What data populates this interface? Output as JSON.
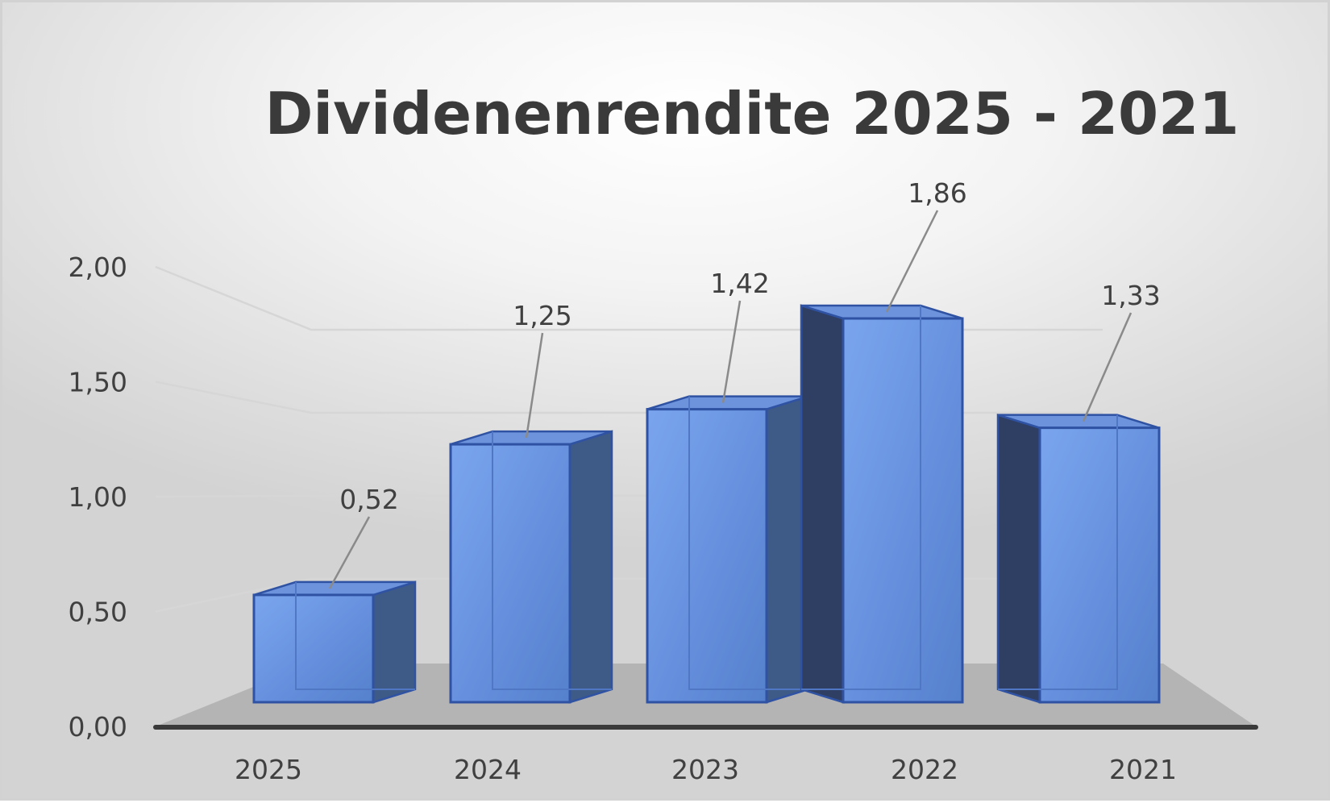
{
  "chart_data": {
    "type": "bar",
    "title": "Dividenenrendite 2025 - 2021",
    "categories": [
      "2025",
      "2024",
      "2023",
      "2022",
      "2021"
    ],
    "values": [
      0.52,
      1.25,
      1.42,
      1.86,
      1.33
    ],
    "data_labels": [
      "0,52",
      "1,25",
      "1,42",
      "1,86",
      "1,33"
    ],
    "y_ticks": [
      "0,00",
      "0,50",
      "1,00",
      "1,50",
      "2,00"
    ],
    "ylim": [
      0,
      2
    ],
    "grid": true,
    "legend": "none",
    "style": "3d-column",
    "colors": {
      "bar_front": "#5b84cf",
      "bar_front_light": "#76a2ec",
      "bar_edge": "#2f52a3",
      "bar_side": "#3e5a87",
      "floor": "#b4b4b4",
      "axis": "#3a3a3a",
      "grid": "#d6d6d6"
    }
  }
}
